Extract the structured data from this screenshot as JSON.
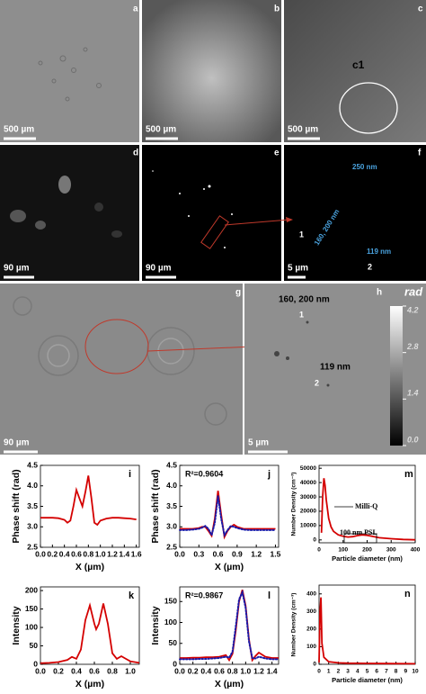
{
  "images": [
    {
      "label": "a",
      "scale_bar": "500 µm"
    },
    {
      "label": "b",
      "scale_bar": "500 µm"
    },
    {
      "label": "c",
      "scale_bar": "500 µm",
      "annotations": [
        "c1"
      ]
    },
    {
      "label": "d",
      "scale_bar": "90 µm"
    },
    {
      "label": "e",
      "scale_bar": "90 µm"
    },
    {
      "label": "f",
      "scale_bar": "5 µm",
      "annotations": [
        "250 nm",
        "160, 200 nm",
        "119 nm",
        "1",
        "2"
      ]
    },
    {
      "label": "g",
      "scale_bar": "90 µm"
    },
    {
      "label": "h",
      "scale_bar": "5 µm",
      "annotations": [
        "160, 200 nm",
        "1",
        "119 nm",
        "2"
      ]
    }
  ],
  "colorbar": {
    "title": "rad",
    "lim": [
      0,
      4.2
    ],
    "ticks": [
      {
        "value": 0,
        "label": "0.0"
      },
      1.4,
      2.8,
      4.2
    ]
  },
  "chart_data": [
    {
      "type": "line",
      "label": "i",
      "xlabel": "X (µm)",
      "ylabel": "Phase shift (rad)",
      "x": [
        0,
        0.1,
        0.2,
        0.3,
        0.4,
        0.45,
        0.5,
        0.55,
        0.6,
        0.65,
        0.7,
        0.75,
        0.8,
        0.85,
        0.9,
        0.95,
        1.0,
        1.1,
        1.2,
        1.3,
        1.4,
        1.5,
        1.6
      ],
      "series": [
        {
          "color": "#d40000",
          "values": [
            3.22,
            3.22,
            3.22,
            3.21,
            3.17,
            3.1,
            3.15,
            3.5,
            3.9,
            3.7,
            3.5,
            3.85,
            4.25,
            3.7,
            3.1,
            3.05,
            3.15,
            3.2,
            3.22,
            3.22,
            3.21,
            3.2,
            3.18
          ]
        }
      ],
      "xlim": [
        0,
        1.65
      ],
      "xticks": [
        {
          "value": 0,
          "label": "0.0"
        },
        0.2,
        0.4,
        0.6,
        0.8,
        {
          "value": 1,
          "label": "1.0"
        },
        1.2,
        1.4,
        1.6
      ],
      "ylim": [
        2.5,
        4.5
      ],
      "yticks": [
        2.5,
        {
          "value": 3,
          "label": "3.0"
        },
        3.5,
        {
          "value": 4,
          "label": "4.0"
        },
        4.5
      ]
    },
    {
      "type": "line",
      "label": "j",
      "xlabel": "X (µm)",
      "ylabel": "Phase shift (rad)",
      "annotations": [
        "R²=0.9604"
      ],
      "x": [
        0,
        0.1,
        0.2,
        0.3,
        0.35,
        0.4,
        0.45,
        0.5,
        0.55,
        0.6,
        0.65,
        0.7,
        0.75,
        0.8,
        0.85,
        0.9,
        1.0,
        1.1,
        1.2,
        1.3,
        1.4,
        1.5
      ],
      "series": [
        {
          "color": "#d40000",
          "values": [
            2.95,
            2.95,
            2.95,
            2.97,
            3.0,
            3.0,
            2.9,
            2.78,
            3.2,
            3.88,
            3.3,
            2.75,
            2.9,
            3.0,
            3.05,
            3.0,
            2.95,
            2.95,
            2.95,
            2.95,
            2.95,
            2.95
          ]
        },
        {
          "color": "#1a1aa8",
          "style": "dotted",
          "values": [
            2.92,
            2.92,
            2.93,
            2.95,
            2.98,
            3.02,
            2.95,
            2.8,
            3.1,
            3.75,
            3.2,
            2.8,
            2.92,
            3.02,
            3.0,
            2.97,
            2.93,
            2.92,
            2.92,
            2.92,
            2.92,
            2.92
          ]
        }
      ],
      "xlim": [
        0,
        1.55
      ],
      "xticks": [
        {
          "value": 0,
          "label": "0.0"
        },
        0.3,
        0.6,
        0.9,
        1.2,
        1.5
      ],
      "ylim": [
        2.5,
        4.5
      ],
      "yticks": [
        2.5,
        {
          "value": 3,
          "label": "3.0"
        },
        3.5,
        {
          "value": 4,
          "label": "4.0"
        },
        4.5
      ]
    },
    {
      "type": "line",
      "label": "m",
      "xlabel": "Particle diameter (nm)",
      "ylabel": "Number Density (cm⁻³)",
      "annotations": [
        "Milli-Q",
        "100 nm PSL"
      ],
      "x": [
        10,
        15,
        20,
        25,
        30,
        40,
        50,
        60,
        80,
        100,
        120,
        140,
        160,
        180,
        200,
        220,
        250,
        300,
        350,
        400
      ],
      "series": [
        {
          "color": "#d40000",
          "values": [
            5000,
            30000,
            43000,
            38000,
            28000,
            15000,
            9000,
            6000,
            3500,
            2500,
            2000,
            2300,
            3000,
            3500,
            3200,
            2500,
            1500,
            800,
            300,
            100
          ]
        }
      ],
      "xlim": [
        0,
        400
      ],
      "xticks": [
        0,
        100,
        200,
        300,
        400
      ],
      "ylim": [
        -2000,
        52000
      ],
      "yticks": [
        0,
        10000,
        20000,
        30000,
        40000,
        50000
      ]
    },
    {
      "type": "line",
      "label": "k",
      "xlabel": "X (µm)",
      "ylabel": "Intensity",
      "x": [
        0,
        0.1,
        0.2,
        0.3,
        0.35,
        0.4,
        0.45,
        0.5,
        0.55,
        0.6,
        0.62,
        0.65,
        0.7,
        0.75,
        0.8,
        0.85,
        0.9,
        0.95,
        1.0,
        1.1
      ],
      "series": [
        {
          "color": "#d40000",
          "values": [
            3,
            4,
            6,
            12,
            20,
            15,
            40,
            120,
            160,
            110,
            95,
            110,
            165,
            110,
            30,
            15,
            22,
            15,
            8,
            4
          ]
        }
      ],
      "xlim": [
        0,
        1.1
      ],
      "xticks": [
        {
          "value": 0,
          "label": "0.0"
        },
        0.2,
        0.4,
        0.6,
        0.8,
        {
          "value": 1,
          "label": "1.0"
        }
      ],
      "ylim": [
        0,
        210
      ],
      "yticks": [
        0,
        50,
        100,
        150,
        200
      ]
    },
    {
      "type": "line",
      "label": "l",
      "xlabel": "X (µm)",
      "ylabel": "Intensity",
      "annotations": [
        "R²=0.9867"
      ],
      "x": [
        0,
        0.1,
        0.2,
        0.3,
        0.4,
        0.5,
        0.6,
        0.7,
        0.75,
        0.8,
        0.85,
        0.9,
        0.95,
        1.0,
        1.05,
        1.1,
        1.15,
        1.2,
        1.3,
        1.4,
        1.5
      ],
      "series": [
        {
          "color": "#d40000",
          "values": [
            15,
            15,
            16,
            16,
            17,
            17,
            18,
            22,
            10,
            25,
            80,
            150,
            178,
            140,
            60,
            10,
            20,
            28,
            18,
            15,
            15
          ]
        },
        {
          "color": "#1a1aa8",
          "style": "dotted",
          "values": [
            12,
            12,
            12,
            13,
            13,
            14,
            15,
            18,
            16,
            30,
            90,
            155,
            172,
            135,
            55,
            15,
            14,
            18,
            14,
            12,
            12
          ]
        }
      ],
      "xlim": [
        0,
        1.5
      ],
      "xticks": [
        {
          "value": 0,
          "label": "0.0"
        },
        0.2,
        0.4,
        0.6,
        0.8,
        {
          "value": 1,
          "label": "1.0"
        },
        1.2,
        1.4
      ],
      "ylim": [
        0,
        185
      ],
      "yticks": [
        0,
        50,
        100,
        150
      ]
    },
    {
      "type": "line",
      "label": "n",
      "xlabel": "Particle diameter (nm)",
      "ylabel": "Number Density (cm⁻³)",
      "x": [
        0,
        0.1,
        0.2,
        0.3,
        0.5,
        1,
        2,
        3,
        5,
        7,
        10
      ],
      "series": [
        {
          "color": "#d40000",
          "values": [
            10,
            300,
            380,
            120,
            40,
            15,
            8,
            6,
            5,
            4,
            3
          ]
        }
      ],
      "xlim": [
        0,
        10
      ],
      "xticks": [
        0,
        1,
        2,
        3,
        4,
        5,
        6,
        7,
        8,
        9,
        10
      ],
      "ylim": [
        0,
        450
      ],
      "yticks": [
        0,
        100,
        200,
        300,
        400
      ]
    }
  ]
}
